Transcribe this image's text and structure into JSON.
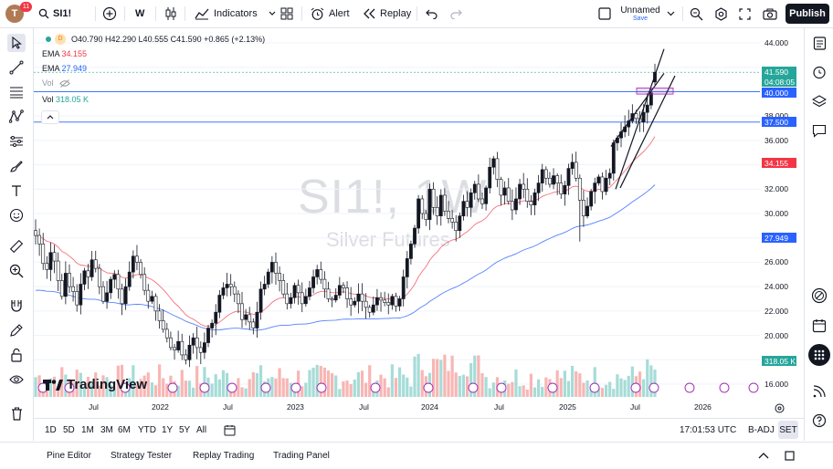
{
  "topbar": {
    "avatar_letter": "T",
    "notif_count": "11",
    "symbol": "SI1!",
    "interval": "W",
    "indicators_label": "Indicators",
    "alert_label": "Alert",
    "replay_label": "Replay",
    "layout_name": "Unnamed",
    "layout_status": "Save",
    "publish_label": "Publish"
  },
  "legend": {
    "ohlc": "O40.790 H42.290 L40.555 C41.590 +0.865 (+2.13%)",
    "ema1_label": "EMA",
    "ema1_value": "34.155",
    "ema2_label": "EMA",
    "ema2_value": "27.949",
    "vol1_label": "Vol",
    "vol2_label": "Vol",
    "vol2_value": "318.05 K",
    "source_badge": "D"
  },
  "watermark": {
    "symbol_interval": "SI1!, 1W",
    "description": "Silver Futures"
  },
  "logo_text": "TradingView",
  "price_axis": {
    "ticks": [
      "44.000",
      "42.000",
      "40.000",
      "38.000",
      "36.000",
      "34.000",
      "32.000",
      "30.000",
      "28.000",
      "26.000",
      "24.000",
      "22.000",
      "20.000",
      "18.000",
      "16.000"
    ],
    "last_price": "41.590",
    "countdown": "04:08:05",
    "level_1": "40.000",
    "level_2": "37.500",
    "ema1_tag": "34.155",
    "ema2_tag": "27.949",
    "vol_tag": "318.05 K"
  },
  "time_axis": [
    "Jul",
    "2022",
    "Jul",
    "2023",
    "Jul",
    "2024",
    "Jul",
    "2025",
    "Jul",
    "2026"
  ],
  "ranges": [
    "1D",
    "5D",
    "1M",
    "3M",
    "6M",
    "YTD",
    "1Y",
    "5Y",
    "All"
  ],
  "status": {
    "clock": "17:01:53 UTC",
    "adj": "B-ADJ",
    "session": "SET"
  },
  "footer_tabs": [
    "Pine Editor",
    "Strategy Tester",
    "Replay Trading",
    "Trading Panel"
  ],
  "colors": {
    "up": "#26a69a",
    "down": "#ef5350",
    "ema_fast": "#f23645",
    "ema_slow": "#2962ff",
    "level_line": "#2962ff"
  },
  "chart_data": {
    "type": "candlestick",
    "title": "SI1!, 1W",
    "subtitle": "Silver Futures",
    "ylim": [
      16,
      44.5
    ],
    "level_lines": [
      40.0,
      37.5
    ],
    "last": {
      "open": 40.79,
      "high": 42.29,
      "low": 40.555,
      "close": 41.59
    },
    "ema_fast_last": 34.155,
    "ema_slow_last": 27.949,
    "volume_last": "318.05 K",
    "closes": [
      28.2,
      27.5,
      25.9,
      25.4,
      26.8,
      26.1,
      24.5,
      23.2,
      25.1,
      24.0,
      23.6,
      22.5,
      24.2,
      25.3,
      24.8,
      26.2,
      25.5,
      24.0,
      22.8,
      23.5,
      24.6,
      25.0,
      23.8,
      22.6,
      24.0,
      25.2,
      26.5,
      26.0,
      25.0,
      23.7,
      22.8,
      23.2,
      22.0,
      21.2,
      20.5,
      19.8,
      19.0,
      18.8,
      19.5,
      18.4,
      18.0,
      19.2,
      19.8,
      19.0,
      18.6,
      19.4,
      20.6,
      21.0,
      21.9,
      23.3,
      23.9,
      24.2,
      24.0,
      23.4,
      22.6,
      21.3,
      21.7,
      21.1,
      20.6,
      21.9,
      23.8,
      24.2,
      25.2,
      26.0,
      25.1,
      24.5,
      23.4,
      22.6,
      23.1,
      24.1,
      23.5,
      22.6,
      23.2,
      23.9,
      24.8,
      25.4,
      24.6,
      23.8,
      23.0,
      22.9,
      23.3,
      24.1,
      23.9,
      23.0,
      22.5,
      22.8,
      23.4,
      22.8,
      22.3,
      21.9,
      22.5,
      23.1,
      22.9,
      22.7,
      22.5,
      23.2,
      22.4,
      23.0,
      24.8,
      26.3,
      27.5,
      28.8,
      31.2,
      30.0,
      29.5,
      32.0,
      30.5,
      29.8,
      31.5,
      30.2,
      29.6,
      29.3,
      28.6,
      29.8,
      31.0,
      30.5,
      31.7,
      32.4,
      31.2,
      30.8,
      32.1,
      33.8,
      34.5,
      32.8,
      31.5,
      32.1,
      31.0,
      30.3,
      31.2,
      32.4,
      32.0,
      31.0,
      30.7,
      31.7,
      32.5,
      33.6,
      32.9,
      32.4,
      33.1,
      32.5,
      31.6,
      32.3,
      33.7,
      34.2,
      32.9,
      31.1,
      29.8,
      30.6,
      31.8,
      32.5,
      33.0,
      31.8,
      32.9,
      33.3,
      35.8,
      36.2,
      36.7,
      37.1,
      37.6,
      38.2,
      37.8,
      37.5,
      38.3,
      38.9,
      39.9,
      41.6
    ]
  }
}
